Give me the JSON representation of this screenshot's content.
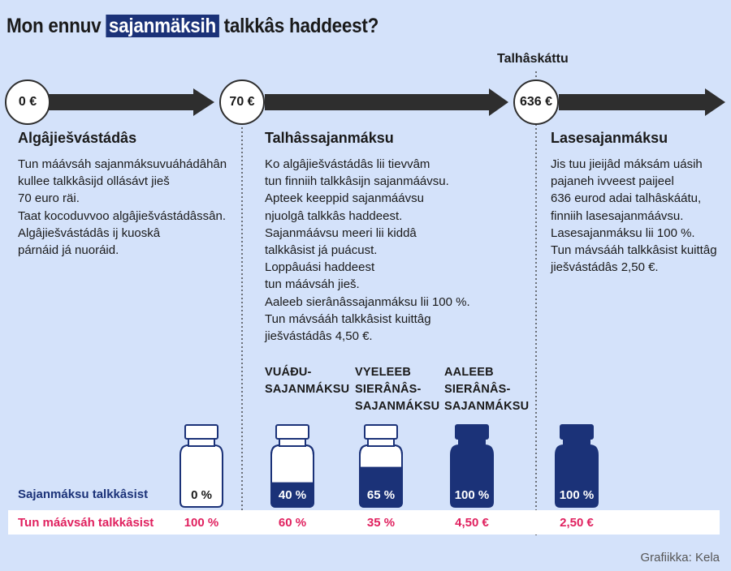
{
  "title": {
    "before": "Mon ennuv ",
    "highlight": "sajanmäksih",
    "after": " talkkâs haddeest?"
  },
  "ceiling_label": "Talhâskáttu",
  "badges": [
    "0 €",
    "70 €",
    "636 €"
  ],
  "stages": [
    {
      "heading": "Algâjiešvástádâs",
      "text": "Tun máávsáh sajanmáksuvuáhádâhân\nkullee talkkâsijd ollásávt jieš\n70 euro räi.\nTaat kocoduvvoo algâjiešvástádâssân.\nAlgâjiešvástádâs ij kuoskâ\npárnáid já nuoráid."
    },
    {
      "heading": "Talhâssajanmáksu",
      "text": "Ko algâjiešvástádâs lii tievvâm\ntun finniih talkkâsijn sajanmáávsu.\nApteek keeppid sajanmáávsu\nnjuolgâ talkkâs haddeest.\nSajanmáávsu meeri lii kiddâ\ntalkkâsist já puácust.\nLoppâuási haddeest\ntun máávsáh jieš.\nAaleeb sierânâssajanmáksu lii 100 %.\nTun mávsááh talkkâsist kuittâg\njiešvástádâs 4,50 €."
    },
    {
      "heading": "Lasesajanmáksu",
      "text": "Jis tuu jieijâd máksám uásih\npajaneh ivveest paijeel\n636 eurod adai talhâskáátu,\nfinniih lasesajanmáávsu.\nLasesajanmáksu lii 100 %.\nTun mávsááh talkkâsist kuittâg\njiešvástádâs 2,50 €."
    }
  ],
  "categories": [
    "VUÁĐU-\nSAJANMÁKSU",
    "VYELEEB\nSIERÂNÂS-\nSAJANMÁKSU",
    "AALEEB\nSIERÂNÂS-\nSAJANMÁKSU"
  ],
  "row_labels": {
    "reimbursement": "Sajanmáksu talkkâsist",
    "payment": "Tun máávsáh talkkâsist"
  },
  "bottles": [
    {
      "fill": 0,
      "reimbursement": "0 %",
      "payment": "100 %"
    },
    {
      "fill": 0.4,
      "reimbursement": "40 %",
      "payment": "60 %"
    },
    {
      "fill": 0.65,
      "reimbursement": "65 %",
      "payment": "35 %"
    },
    {
      "fill": 1.0,
      "reimbursement": "100 %",
      "payment": "4,50 €"
    },
    {
      "fill": 1.0,
      "reimbursement": "100 %",
      "payment": "2,50 €"
    }
  ],
  "colors": {
    "navy": "#1b3278",
    "pink": "#e0215f",
    "background": "#d4e2fa",
    "arrow": "#2e2e2e"
  },
  "credit": "Grafiikka: Kela"
}
